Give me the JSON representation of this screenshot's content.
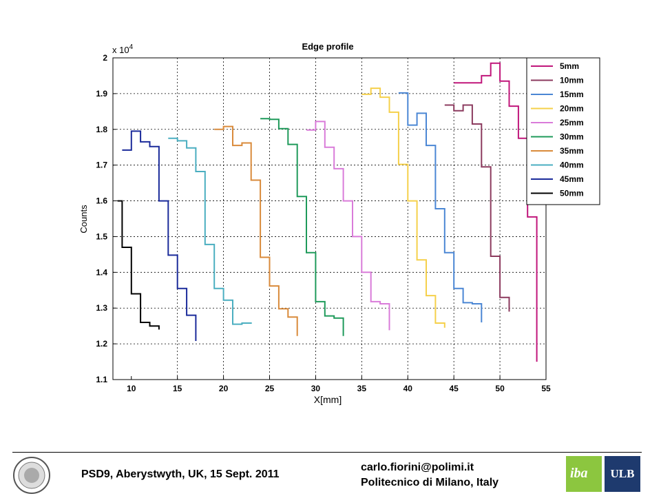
{
  "chart_data": {
    "type": "line",
    "title": "Edge profile",
    "xlabel": "X[mm]",
    "ylabel": "Counts",
    "y_multiplier": "x 10",
    "y_multiplier_exp": "4",
    "xlim": [
      8,
      55
    ],
    "ylim": [
      1.1,
      2.0
    ],
    "x_ticks": [
      10,
      15,
      20,
      25,
      30,
      35,
      40,
      45,
      50,
      55
    ],
    "y_ticks": [
      1.1,
      1.2,
      1.3,
      1.4,
      1.5,
      1.6,
      1.7,
      1.8,
      1.9,
      2.0
    ],
    "y_tick_labels": [
      "1.1",
      "1.2",
      "1.3",
      "1.4",
      "1.5",
      "1.6",
      "1.7",
      "1.8",
      "1.9",
      "2"
    ],
    "grid": true,
    "legend_position": "top-right",
    "series": [
      {
        "name": "5mm",
        "color": "#c0157a",
        "x": [
          45,
          47,
          48,
          49,
          50,
          51,
          52,
          53
        ],
        "y": [
          1.93,
          1.93,
          1.95,
          1.985,
          1.935,
          1.865,
          1.775,
          1.555
        ],
        "end_y": 1.15
      },
      {
        "name": "10mm",
        "color": "#8b3a5e",
        "x": [
          44,
          45,
          46,
          47,
          48,
          49,
          50
        ],
        "y": [
          1.868,
          1.852,
          1.868,
          1.815,
          1.695,
          1.445,
          1.33
        ],
        "end_y": 1.29
      },
      {
        "name": "15mm",
        "color": "#4a86d4",
        "x": [
          39,
          40,
          41,
          42,
          43,
          44,
          45,
          46,
          47
        ],
        "y": [
          1.902,
          1.812,
          1.845,
          1.755,
          1.578,
          1.455,
          1.355,
          1.315,
          1.312
        ],
        "end_y": 1.26
      },
      {
        "name": "20mm",
        "color": "#f5d04a",
        "x": [
          35,
          36,
          37,
          38,
          39,
          40,
          41,
          42,
          43
        ],
        "y": [
          1.898,
          1.915,
          1.89,
          1.848,
          1.702,
          1.6,
          1.435,
          1.335,
          1.258
        ],
        "end_y": 1.245
      },
      {
        "name": "25mm",
        "color": "#d97bd9",
        "x": [
          29,
          30,
          31,
          32,
          33,
          34,
          35,
          36,
          37
        ],
        "y": [
          1.798,
          1.822,
          1.75,
          1.69,
          1.6,
          1.5,
          1.4,
          1.318,
          1.312
        ],
        "end_y": 1.238
      },
      {
        "name": "30mm",
        "color": "#1e9a5a",
        "x": [
          24,
          25,
          26,
          27,
          28,
          29,
          30,
          31,
          32
        ],
        "y": [
          1.83,
          1.828,
          1.802,
          1.758,
          1.612,
          1.455,
          1.318,
          1.278,
          1.272
        ],
        "end_y": 1.222
      },
      {
        "name": "35mm",
        "color": "#d98a3a",
        "x": [
          19,
          20,
          21,
          22,
          23,
          24,
          25,
          26,
          27
        ],
        "y": [
          1.8,
          1.808,
          1.755,
          1.762,
          1.658,
          1.442,
          1.362,
          1.298,
          1.275
        ],
        "end_y": 1.222
      },
      {
        "name": "40mm",
        "color": "#4aaec0",
        "x": [
          14,
          15,
          16,
          17,
          18,
          19,
          20,
          21,
          22
        ],
        "y": [
          1.775,
          1.768,
          1.748,
          1.682,
          1.478,
          1.355,
          1.322,
          1.255,
          1.258
        ],
        "end_y": 1.26
      },
      {
        "name": "45mm",
        "color": "#1a2a9a",
        "x": [
          9,
          10,
          11,
          12,
          13,
          14,
          15,
          16
        ],
        "y": [
          1.742,
          1.795,
          1.765,
          1.752,
          1.6,
          1.448,
          1.355,
          1.28
        ],
        "end_y": 1.208
      },
      {
        "name": "50mm",
        "color": "#000000",
        "x": [
          8.5,
          9,
          10,
          11,
          12
        ],
        "y": [
          1.6,
          1.47,
          1.34,
          1.26,
          1.25
        ],
        "end_y": 1.24
      }
    ]
  },
  "footer": {
    "conference": "PSD9, Aberystwyth, UK, 15 Sept. 2011",
    "email": "carlo.fiorini@polimi.it",
    "affiliation": "Politecnico di Milano, Italy",
    "iba_logo_text": "iba",
    "ulb_logo_text": "ULB"
  }
}
